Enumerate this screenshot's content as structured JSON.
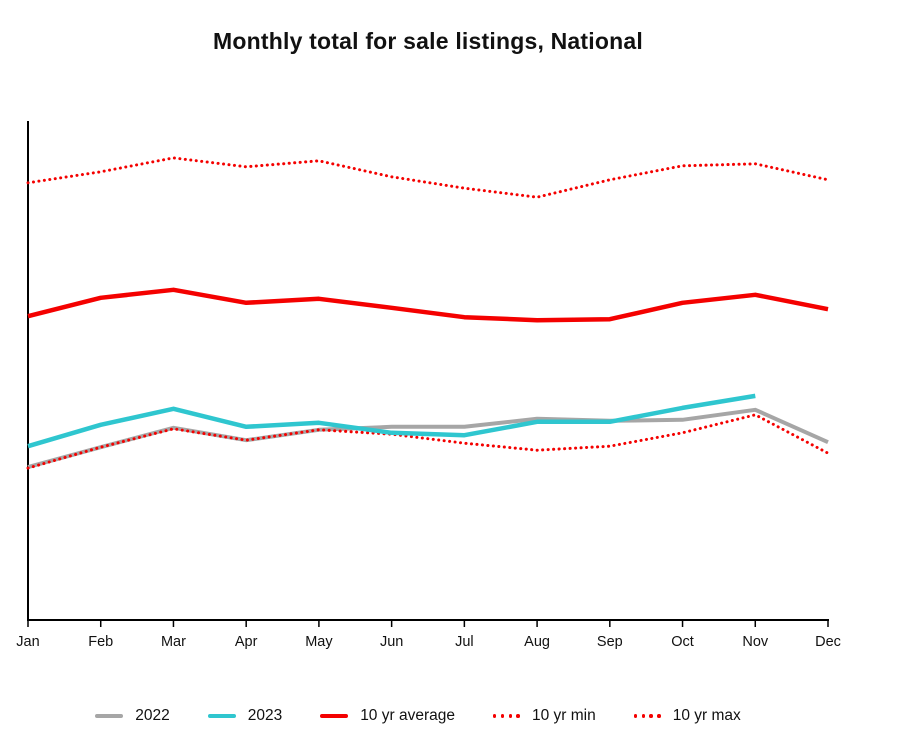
{
  "title": "Monthly total for sale listings, National",
  "colors": {
    "red": "#f40100",
    "cyan": "#2fc6cf",
    "gray": "#a6a6a6",
    "axis": "#000000",
    "text": "#111111",
    "background": "#ffffff"
  },
  "chart_data": {
    "type": "line",
    "title": "Monthly total for sale listings, National",
    "categories": [
      "Jan",
      "Feb",
      "Mar",
      "Apr",
      "May",
      "Jun",
      "Jul",
      "Aug",
      "Sep",
      "Oct",
      "Nov",
      "Dec"
    ],
    "xlabel": "",
    "ylabel": "",
    "y_axis": {
      "tick_labels": [],
      "note": "no y-axis tick labels are shown in the chart; series values below are relative heights on a 0-100 scale of the plot area",
      "ylim": [
        0,
        100
      ]
    },
    "grid": false,
    "legend_position": "bottom",
    "series": [
      {
        "name": "2022",
        "color": "#a6a6a6",
        "style": "solid",
        "values": [
          30.7,
          34.7,
          38.6,
          36.1,
          38.2,
          38.8,
          38.8,
          40.4,
          40.0,
          40.2,
          42.2,
          35.7
        ]
      },
      {
        "name": "2023",
        "color": "#2fc6cf",
        "style": "solid",
        "values": [
          34.9,
          39.2,
          42.4,
          38.8,
          39.6,
          37.6,
          37.1,
          39.8,
          39.8,
          42.6,
          45.0,
          null
        ]
      },
      {
        "name": "10 yr average",
        "color": "#f40100",
        "style": "solid",
        "values": [
          61.0,
          64.7,
          66.3,
          63.7,
          64.5,
          62.7,
          60.8,
          60.2,
          60.4,
          63.7,
          65.3,
          62.4
        ]
      },
      {
        "name": "10 yr min",
        "color": "#f40100",
        "style": "dotted",
        "values": [
          30.5,
          34.7,
          38.4,
          36.1,
          38.2,
          37.3,
          35.5,
          34.1,
          34.9,
          37.6,
          41.2,
          33.5
        ]
      },
      {
        "name": "10 yr max",
        "color": "#f40100",
        "style": "dotted",
        "values": [
          87.8,
          90.0,
          92.8,
          91.0,
          92.2,
          89.0,
          86.7,
          84.9,
          88.4,
          91.2,
          91.6,
          88.4
        ]
      }
    ]
  }
}
